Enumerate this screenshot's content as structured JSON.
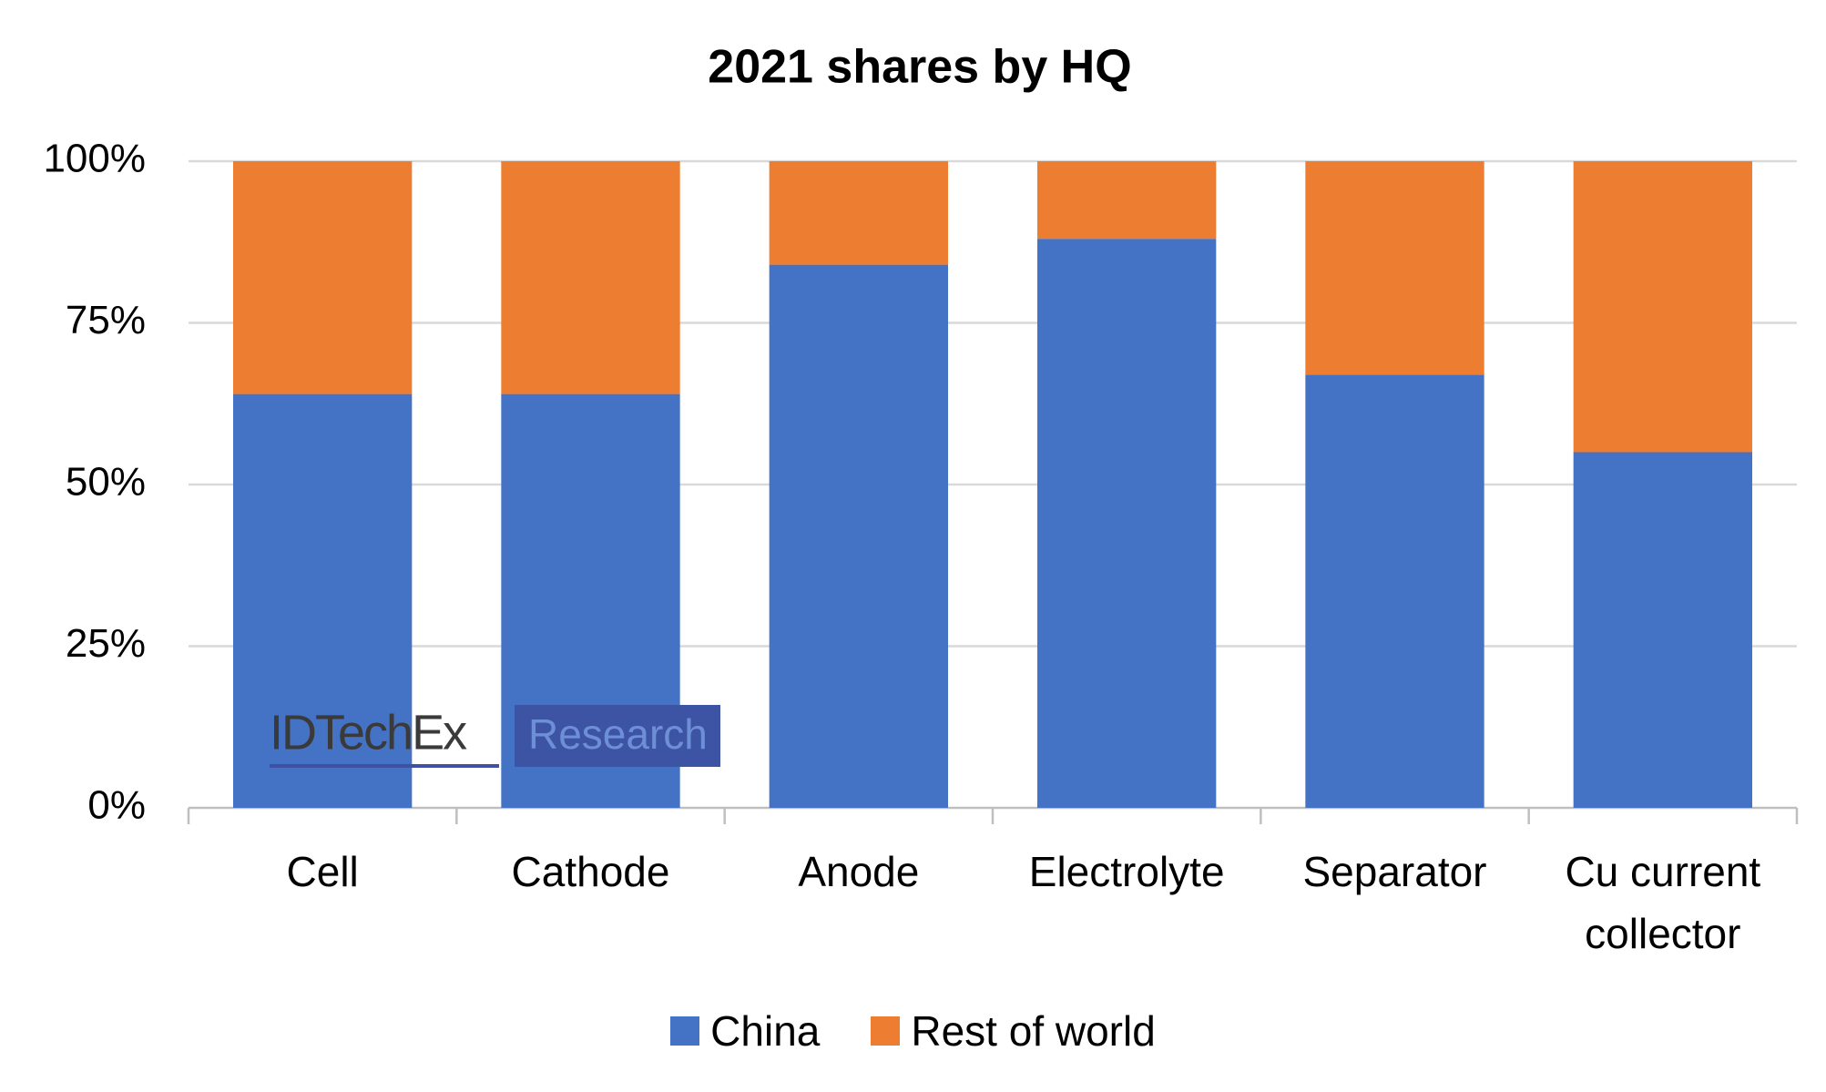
{
  "chart_data": {
    "type": "stacked_bar",
    "title": "2021 shares by HQ",
    "categories": [
      "Cell",
      "Cathode",
      "Anode",
      "Electrolyte",
      "Separator",
      "Cu current collector"
    ],
    "series": [
      {
        "name": "China",
        "color": "#4472c4",
        "values": [
          64,
          64,
          84,
          88,
          67,
          55
        ]
      },
      {
        "name": "Rest of world",
        "color": "#ed7d31",
        "values": [
          36,
          36,
          16,
          12,
          33,
          45
        ]
      }
    ],
    "ylim": [
      0,
      100
    ],
    "yticks": [
      {
        "value": 0,
        "label": "0%"
      },
      {
        "value": 25,
        "label": "25%"
      },
      {
        "value": 50,
        "label": "50%"
      },
      {
        "value": 75,
        "label": "75%"
      },
      {
        "value": 100,
        "label": "100%"
      }
    ],
    "grid": true,
    "legend": "bottom",
    "watermark": {
      "brand": "IDTechEx",
      "unit": "Research"
    }
  }
}
